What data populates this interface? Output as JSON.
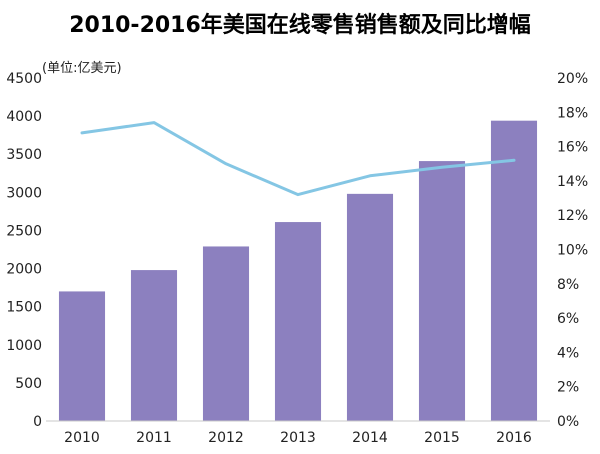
{
  "chart_data": {
    "type": "bar",
    "title": "2010-2016年美国在线零售销售额及同比增幅",
    "unit_label": "(单位:亿美元)",
    "categories": [
      "2010",
      "2011",
      "2012",
      "2013",
      "2014",
      "2015",
      "2016"
    ],
    "series": [
      {
        "values": [
          1700,
          1980,
          2290,
          2610,
          2980,
          3410,
          3940
        ],
        "color": "#8c80bf",
        "axis": "left"
      },
      {
        "values": [
          16.8,
          17.4,
          15.0,
          13.2,
          14.3,
          14.8,
          15.2
        ],
        "color": "#84c6e4",
        "axis": "right",
        "type": "line"
      }
    ],
    "y_left": {
      "ylim": [
        0,
        4500
      ],
      "ticks": [
        "0",
        "500",
        "1000",
        "1500",
        "2000",
        "2500",
        "3000",
        "3500",
        "4000",
        "4500"
      ]
    },
    "y_right": {
      "ylim": [
        0,
        20
      ],
      "ticks": [
        "0%",
        "2%",
        "4%",
        "6%",
        "8%",
        "10%",
        "12%",
        "14%",
        "16%",
        "18%",
        "20%"
      ]
    },
    "grid": false,
    "legend": "none"
  }
}
